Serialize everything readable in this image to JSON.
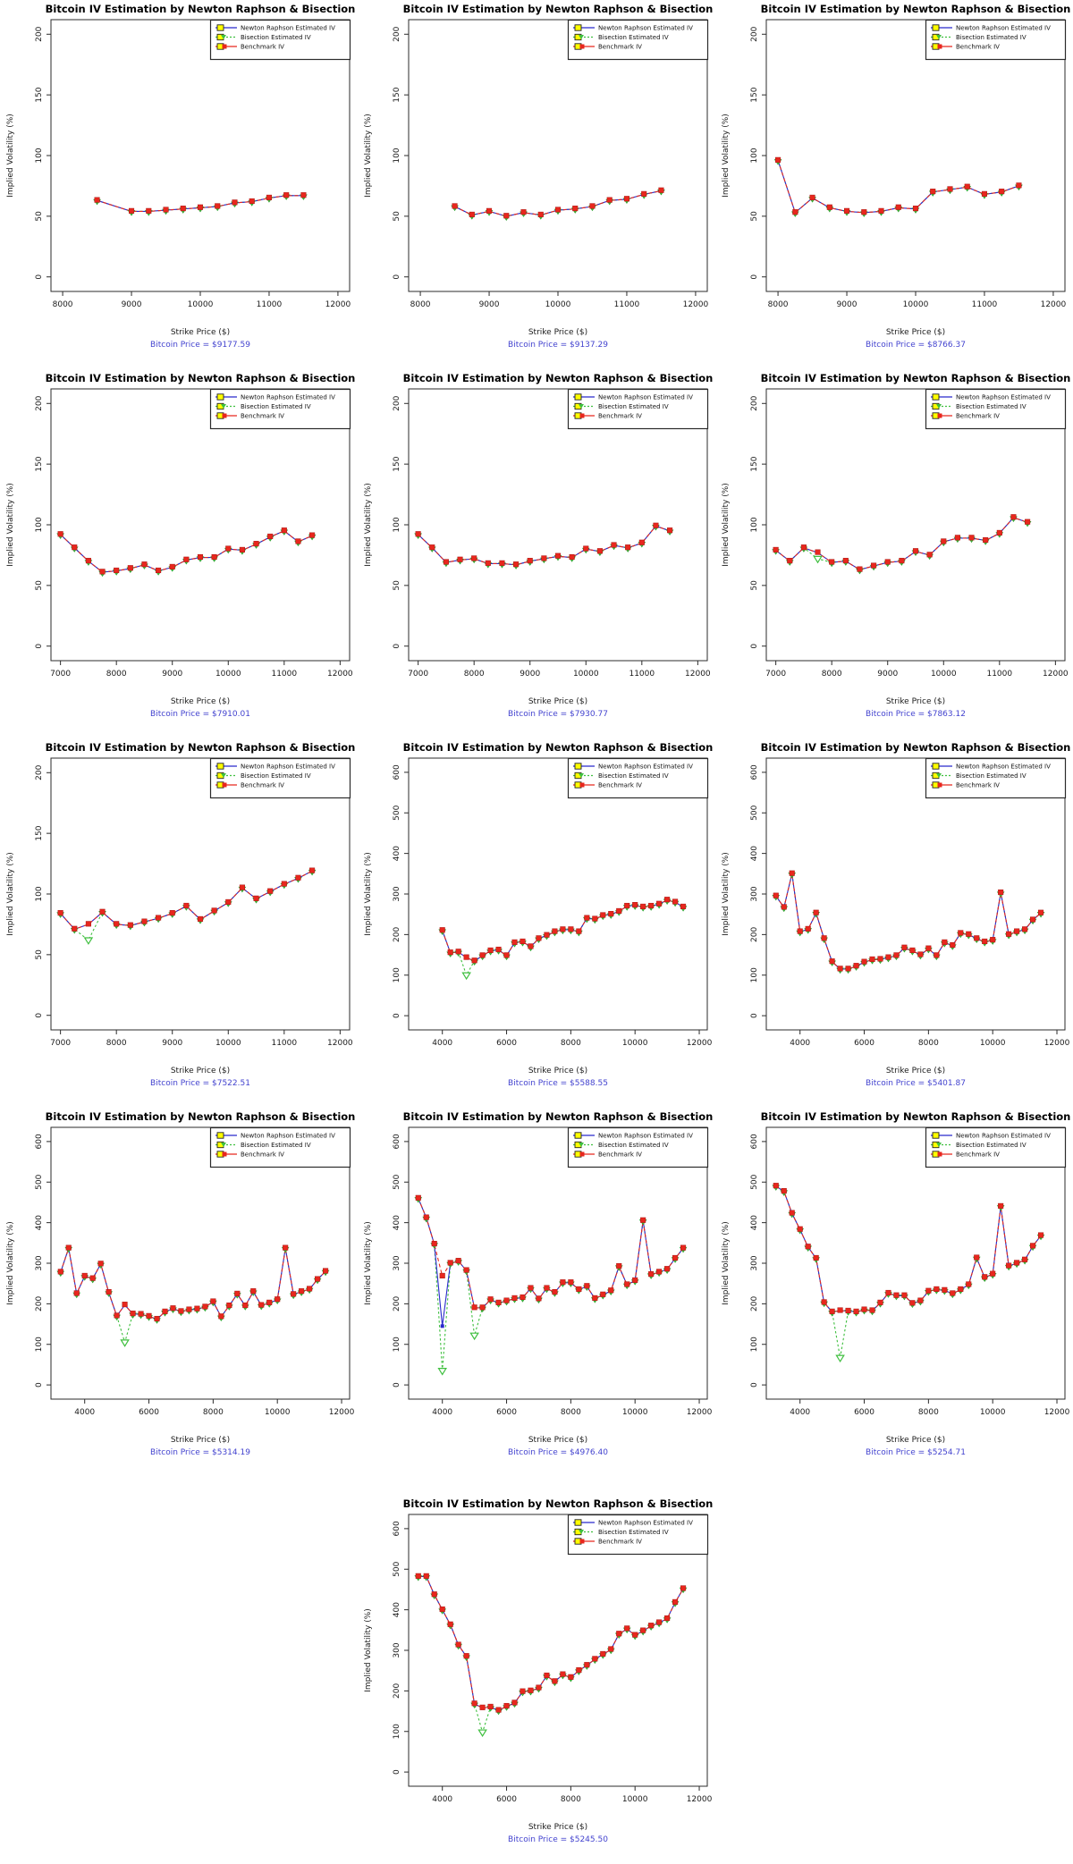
{
  "page": {
    "background": "#ffffff"
  },
  "shared": {
    "title": "Bitcoin IV Estimation by Newton Raphson & Bisection",
    "ylabel": "Implied Volatility (%)",
    "xlabel": "Strike Price ($)",
    "legend": [
      "Newton Raphson Estimated IV",
      "Bisection Estimated IV",
      "Benchmark IV"
    ],
    "colors": {
      "newton": "#2929cc",
      "bisection": "#3fbf3f",
      "bisection_edge": "#2f9e2f",
      "benchmark": "#e8271e",
      "benchmark_edge": "#a81610",
      "legend_marker_fill": "#ffff00",
      "caption": "#4343cf",
      "axis": "#2b2b2b",
      "tick_text": "#1a1a1a"
    }
  },
  "chart_data": [
    {
      "type": "line",
      "caption": "Bitcoin Price = $9177.59",
      "xlim": [
        7830,
        12170
      ],
      "ylim": [
        -12,
        212
      ],
      "xticks": [
        8000,
        9000,
        10000,
        11000,
        12000
      ],
      "yticks": [
        0,
        50,
        100,
        150,
        200
      ],
      "strikes": [
        8500,
        9000,
        9250,
        9500,
        9750,
        10000,
        10250,
        10500,
        10750,
        11000,
        11250,
        11500
      ],
      "benchmark": [
        63,
        54,
        54,
        55,
        56,
        57,
        58,
        61,
        62,
        65,
        67,
        67
      ],
      "bisection_dev": {},
      "newton_dev": {}
    },
    {
      "type": "line",
      "caption": "Bitcoin Price = $9137.29",
      "xlim": [
        7830,
        12170
      ],
      "ylim": [
        -12,
        212
      ],
      "xticks": [
        8000,
        9000,
        10000,
        11000,
        12000
      ],
      "yticks": [
        0,
        50,
        100,
        150,
        200
      ],
      "strikes": [
        8500,
        8750,
        9000,
        9250,
        9500,
        9750,
        10000,
        10250,
        10500,
        10750,
        11000,
        11250,
        11500
      ],
      "benchmark": [
        58,
        51,
        54,
        50,
        53,
        51,
        55,
        56,
        58,
        63,
        64,
        68,
        71
      ],
      "bisection_dev": {},
      "newton_dev": {}
    },
    {
      "type": "line",
      "caption": "Bitcoin Price = $8766.37",
      "xlim": [
        7830,
        12170
      ],
      "ylim": [
        -12,
        212
      ],
      "xticks": [
        8000,
        9000,
        10000,
        11000,
        12000
      ],
      "yticks": [
        0,
        50,
        100,
        150,
        200
      ],
      "strikes": [
        8000,
        8250,
        8500,
        8750,
        9000,
        9250,
        9500,
        9750,
        10000,
        10250,
        10500,
        10750,
        11000,
        11250,
        11500
      ],
      "benchmark": [
        96,
        53,
        65,
        57,
        54,
        53,
        54,
        57,
        56,
        70,
        72,
        74,
        68,
        70,
        75
      ],
      "bisection_dev": {},
      "newton_dev": {}
    },
    {
      "type": "line",
      "caption": "Bitcoin Price = $7910.01",
      "xlim": [
        6830,
        12170
      ],
      "ylim": [
        -12,
        212
      ],
      "xticks": [
        7000,
        8000,
        9000,
        10000,
        11000,
        12000
      ],
      "yticks": [
        0,
        50,
        100,
        150,
        200
      ],
      "strikes": [
        7000,
        7250,
        7500,
        7750,
        8000,
        8250,
        8500,
        8750,
        9000,
        9250,
        9500,
        9750,
        10000,
        10250,
        10500,
        10750,
        11000,
        11250,
        11500
      ],
      "benchmark": [
        92,
        81,
        70,
        61,
        62,
        64,
        67,
        62,
        65,
        71,
        73,
        73,
        80,
        79,
        84,
        90,
        95,
        86,
        91
      ],
      "bisection_dev": {},
      "newton_dev": {}
    },
    {
      "type": "line",
      "caption": "Bitcoin Price = $7930.77",
      "xlim": [
        6830,
        12170
      ],
      "ylim": [
        -12,
        212
      ],
      "xticks": [
        7000,
        8000,
        9000,
        10000,
        11000,
        12000
      ],
      "yticks": [
        0,
        50,
        100,
        150,
        200
      ],
      "strikes": [
        7000,
        7250,
        7500,
        7750,
        8000,
        8250,
        8500,
        8750,
        9000,
        9250,
        9500,
        9750,
        10000,
        10250,
        10500,
        10750,
        11000,
        11250,
        11500
      ],
      "benchmark": [
        92,
        81,
        69,
        71,
        72,
        68,
        68,
        67,
        70,
        72,
        74,
        73,
        80,
        78,
        83,
        81,
        85,
        99,
        95
      ],
      "bisection_dev": {},
      "newton_dev": {}
    },
    {
      "type": "line",
      "caption": "Bitcoin Price = $7863.12",
      "xlim": [
        6830,
        12170
      ],
      "ylim": [
        -12,
        212
      ],
      "xticks": [
        7000,
        8000,
        9000,
        10000,
        11000,
        12000
      ],
      "yticks": [
        0,
        50,
        100,
        150,
        200
      ],
      "strikes": [
        7000,
        7250,
        7500,
        7750,
        8000,
        8250,
        8500,
        8750,
        9000,
        9250,
        9500,
        9750,
        10000,
        10250,
        10500,
        10750,
        11000,
        11250,
        11500
      ],
      "benchmark": [
        79,
        70,
        81,
        77,
        69,
        70,
        63,
        66,
        69,
        70,
        78,
        75,
        86,
        89,
        89,
        87,
        93,
        106,
        102
      ],
      "bisection_dev": {
        "7750": 72
      },
      "newton_dev": {}
    },
    {
      "type": "line",
      "caption": "Bitcoin Price = $7522.51",
      "xlim": [
        6830,
        12170
      ],
      "ylim": [
        -12,
        212
      ],
      "xticks": [
        7000,
        8000,
        9000,
        10000,
        11000,
        12000
      ],
      "yticks": [
        0,
        50,
        100,
        150,
        200
      ],
      "strikes": [
        7000,
        7250,
        7500,
        7750,
        8000,
        8250,
        8500,
        8750,
        9000,
        9250,
        9500,
        9750,
        10000,
        10250,
        10500,
        10750,
        11000,
        11250,
        11500
      ],
      "benchmark": [
        84,
        71,
        75,
        85,
        75,
        74,
        77,
        80,
        84,
        90,
        79,
        86,
        93,
        105,
        96,
        102,
        108,
        113,
        119
      ],
      "bisection_dev": {
        "7500": 62
      },
      "newton_dev": {}
    },
    {
      "type": "line",
      "caption": "Bitcoin Price = $5588.55",
      "xlim": [
        2950,
        12250
      ],
      "ylim": [
        -35,
        635
      ],
      "xticks": [
        4000,
        6000,
        8000,
        10000,
        12000
      ],
      "yticks": [
        0,
        100,
        200,
        300,
        400,
        500,
        600
      ],
      "strikes": [
        4000,
        4250,
        4500,
        4750,
        5000,
        5250,
        5500,
        5750,
        6000,
        6250,
        6500,
        6750,
        7000,
        7250,
        7500,
        7750,
        8000,
        8250,
        8500,
        8750,
        9000,
        9250,
        9500,
        9750,
        10000,
        10250,
        10500,
        10750,
        11000,
        11250,
        11500
      ],
      "benchmark": [
        210,
        155,
        157,
        143,
        135,
        148,
        160,
        162,
        148,
        180,
        182,
        170,
        190,
        198,
        207,
        212,
        212,
        207,
        240,
        238,
        247,
        250,
        257,
        270,
        272,
        268,
        270,
        275,
        285,
        280,
        268
      ],
      "bisection_dev": {
        "4750": 100
      },
      "newton_dev": {}
    },
    {
      "type": "line",
      "caption": "Bitcoin Price = $5401.87",
      "xlim": [
        2950,
        12250
      ],
      "ylim": [
        -35,
        635
      ],
      "xticks": [
        4000,
        6000,
        8000,
        10000,
        12000
      ],
      "yticks": [
        0,
        100,
        200,
        300,
        400,
        500,
        600
      ],
      "strikes": [
        3250,
        3500,
        3750,
        4000,
        4250,
        4500,
        4750,
        5000,
        5250,
        5500,
        5750,
        6000,
        6250,
        6500,
        6750,
        7000,
        7250,
        7500,
        7750,
        8000,
        8250,
        8500,
        8750,
        9000,
        9250,
        9500,
        9750,
        10000,
        10250,
        10500,
        10750,
        11000,
        11250,
        11500
      ],
      "benchmark": [
        295,
        267,
        350,
        207,
        213,
        253,
        190,
        133,
        115,
        115,
        122,
        132,
        138,
        139,
        143,
        148,
        167,
        160,
        150,
        165,
        148,
        180,
        173,
        203,
        200,
        190,
        182,
        186,
        303,
        200,
        207,
        212,
        236,
        253
      ],
      "bisection_dev": {},
      "newton_dev": {}
    },
    {
      "type": "line",
      "caption": "Bitcoin Price = $5314.19",
      "xlim": [
        2950,
        12250
      ],
      "ylim": [
        -35,
        635
      ],
      "xticks": [
        4000,
        6000,
        8000,
        10000,
        12000
      ],
      "yticks": [
        0,
        100,
        200,
        300,
        400,
        500,
        600
      ],
      "strikes": [
        3250,
        3500,
        3750,
        4000,
        4250,
        4500,
        4750,
        5000,
        5250,
        5500,
        5750,
        6000,
        6250,
        6500,
        6750,
        7000,
        7250,
        7500,
        7750,
        8000,
        8250,
        8500,
        8750,
        9000,
        9250,
        9500,
        9750,
        10000,
        10250,
        10500,
        10750,
        11000,
        11250,
        11500
      ],
      "benchmark": [
        278,
        337,
        225,
        268,
        262,
        298,
        228,
        170,
        197,
        175,
        174,
        169,
        162,
        180,
        188,
        181,
        185,
        187,
        192,
        205,
        168,
        195,
        224,
        195,
        230,
        196,
        202,
        210,
        337,
        223,
        230,
        236,
        260,
        280
      ],
      "bisection_dev": {
        "5250": 105
      },
      "newton_dev": {}
    },
    {
      "type": "line",
      "caption": "Bitcoin Price = $4976.40",
      "xlim": [
        2950,
        12250
      ],
      "ylim": [
        -35,
        635
      ],
      "xticks": [
        4000,
        6000,
        8000,
        10000,
        12000
      ],
      "yticks": [
        0,
        100,
        200,
        300,
        400,
        500,
        600
      ],
      "strikes": [
        3250,
        3500,
        3750,
        4000,
        4250,
        4500,
        4750,
        5000,
        5250,
        5500,
        5750,
        6000,
        6250,
        6500,
        6750,
        7000,
        7250,
        7500,
        7750,
        8000,
        8250,
        8500,
        8750,
        9000,
        9250,
        9500,
        9750,
        10000,
        10250,
        10500,
        10750,
        11000,
        11250,
        11500
      ],
      "benchmark": [
        460,
        412,
        347,
        268,
        300,
        305,
        282,
        190,
        190,
        210,
        202,
        207,
        213,
        215,
        238,
        212,
        238,
        228,
        252,
        252,
        235,
        243,
        213,
        222,
        232,
        292,
        247,
        257,
        405,
        272,
        278,
        285,
        312,
        337
      ],
      "bisection_dev": {
        "4000": 35,
        "5000": 122
      },
      "newton_dev": {
        "4000": 145
      }
    },
    {
      "type": "line",
      "caption": "Bitcoin Price = $5254.71",
      "xlim": [
        2950,
        12250
      ],
      "ylim": [
        -35,
        635
      ],
      "xticks": [
        4000,
        6000,
        8000,
        10000,
        12000
      ],
      "yticks": [
        0,
        100,
        200,
        300,
        400,
        500,
        600
      ],
      "strikes": [
        3250,
        3500,
        3750,
        4000,
        4250,
        4500,
        4750,
        5000,
        5250,
        5500,
        5750,
        6000,
        6250,
        6500,
        6750,
        7000,
        7250,
        7500,
        7750,
        8000,
        8250,
        8500,
        8750,
        9000,
        9250,
        9500,
        9750,
        10000,
        10250,
        10500,
        10750,
        11000,
        11250,
        11500
      ],
      "benchmark": [
        490,
        477,
        423,
        383,
        340,
        312,
        203,
        180,
        183,
        182,
        180,
        185,
        183,
        202,
        226,
        220,
        220,
        201,
        207,
        231,
        235,
        233,
        225,
        235,
        247,
        313,
        265,
        273,
        440,
        293,
        300,
        308,
        342,
        368
      ],
      "bisection_dev": {
        "5250": 67
      },
      "newton_dev": {}
    },
    {
      "type": "line",
      "caption": "Bitcoin Price = $5245.50",
      "xlim": [
        2950,
        12250
      ],
      "ylim": [
        -35,
        635
      ],
      "xticks": [
        4000,
        6000,
        8000,
        10000,
        12000
      ],
      "yticks": [
        0,
        100,
        200,
        300,
        400,
        500,
        600
      ],
      "strikes": [
        3250,
        3500,
        3750,
        4000,
        4250,
        4500,
        4750,
        5000,
        5250,
        5500,
        5750,
        6000,
        6250,
        6500,
        6750,
        7000,
        7250,
        7500,
        7750,
        8000,
        8250,
        8500,
        8750,
        9000,
        9250,
        9500,
        9750,
        10000,
        10250,
        10500,
        10750,
        11000,
        11250,
        11500
      ],
      "benchmark": [
        482,
        482,
        437,
        400,
        363,
        313,
        285,
        168,
        158,
        160,
        152,
        162,
        170,
        198,
        200,
        207,
        237,
        223,
        240,
        233,
        250,
        263,
        278,
        290,
        302,
        340,
        353,
        337,
        348,
        360,
        368,
        378,
        418,
        452
      ],
      "bisection_dev": {
        "5250": 98
      },
      "newton_dev": {}
    }
  ]
}
